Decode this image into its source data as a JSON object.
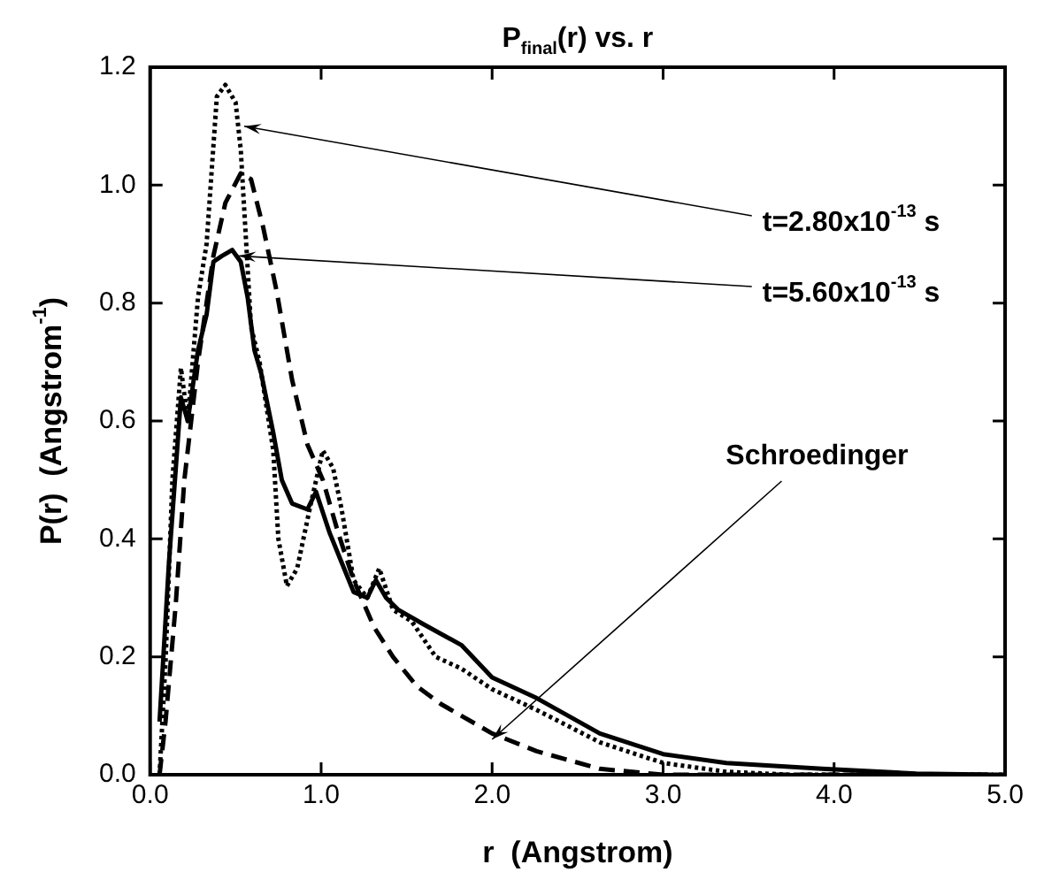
{
  "chart_data": {
    "type": "line",
    "title": "P$_{final}$(r) vs. r",
    "xlabel": "r  (Angstrom)",
    "ylabel": "P(r)  (Angstrom$^{-1}$)",
    "xlim": [
      0,
      5
    ],
    "ylim": [
      0,
      1.2
    ],
    "xticks": [
      {
        "value": 0,
        "label": "0.0"
      },
      {
        "value": 1,
        "label": "1.0"
      },
      {
        "value": 2,
        "label": "2.0"
      },
      {
        "value": 3,
        "label": "3.0"
      },
      {
        "value": 4,
        "label": "4.0"
      },
      {
        "value": 5,
        "label": "5.0"
      }
    ],
    "yticks": [
      {
        "value": 0,
        "label": "0.0"
      },
      {
        "value": 0.2,
        "label": "0.2"
      },
      {
        "value": 0.4,
        "label": "0.4"
      },
      {
        "value": 0.6,
        "label": "0.6"
      },
      {
        "value": 0.8,
        "label": "0.8"
      },
      {
        "value": 1,
        "label": "1.0"
      },
      {
        "value": 1.2,
        "label": "1.2"
      }
    ],
    "grid": false,
    "legend": false,
    "marker": "none",
    "series": [
      {
        "color": "#000000",
        "line_style": "solid",
        "x": [
          0.055,
          0.11,
          0.18,
          0.22,
          0.28,
          0.33,
          0.37,
          0.42,
          0.48,
          0.53,
          0.57,
          0.61,
          0.65,
          0.72,
          0.77,
          0.83,
          0.92,
          0.97,
          1.05,
          1.12,
          1.19,
          1.27,
          1.32,
          1.38,
          1.45,
          1.6,
          1.82,
          2.0,
          2.26,
          2.63,
          3.0,
          3.37,
          3.93,
          4.48,
          4.93
        ],
        "values": [
          0.09,
          0.36,
          0.64,
          0.6,
          0.72,
          0.78,
          0.87,
          0.88,
          0.89,
          0.87,
          0.81,
          0.72,
          0.68,
          0.58,
          0.5,
          0.46,
          0.45,
          0.48,
          0.41,
          0.36,
          0.31,
          0.3,
          0.33,
          0.3,
          0.28,
          0.255,
          0.22,
          0.165,
          0.13,
          0.07,
          0.035,
          0.02,
          0.01,
          0.002,
          0
        ]
      },
      {
        "color": "#000000",
        "line_style": "dotted",
        "x": [
          0.055,
          0.09,
          0.13,
          0.18,
          0.22,
          0.28,
          0.33,
          0.39,
          0.44,
          0.5,
          0.53,
          0.59,
          0.64,
          0.72,
          0.75,
          0.8,
          0.86,
          0.94,
          1.01,
          1.07,
          1.12,
          1.19,
          1.27,
          1.34,
          1.42,
          1.53,
          1.67,
          1.82,
          2.0,
          2.26,
          2.63,
          3.0,
          3.37,
          3.74,
          5.0
        ],
        "values": [
          0,
          0.19,
          0.5,
          0.69,
          0.6,
          0.81,
          0.9,
          1.15,
          1.17,
          1.14,
          1.06,
          0.76,
          0.7,
          0.55,
          0.4,
          0.32,
          0.35,
          0.46,
          0.55,
          0.52,
          0.45,
          0.33,
          0.3,
          0.35,
          0.28,
          0.26,
          0.2,
          0.18,
          0.145,
          0.11,
          0.055,
          0.02,
          0.005,
          0,
          0
        ]
      },
      {
        "color": "#000000",
        "line_style": "dashed",
        "x": [
          0.055,
          0.09,
          0.15,
          0.2,
          0.28,
          0.37,
          0.44,
          0.53,
          0.59,
          0.66,
          0.74,
          0.83,
          0.92,
          1.01,
          1.1,
          1.19,
          1.31,
          1.42,
          1.56,
          1.7,
          1.82,
          2.0,
          2.26,
          2.63,
          3.0,
          5.0
        ],
        "values": [
          0,
          0.09,
          0.29,
          0.5,
          0.7,
          0.88,
          0.97,
          1.02,
          1.01,
          0.93,
          0.82,
          0.67,
          0.56,
          0.5,
          0.41,
          0.33,
          0.25,
          0.2,
          0.15,
          0.12,
          0.1,
          0.07,
          0.04,
          0.01,
          0,
          0
        ]
      }
    ],
    "annotations": [
      {
        "text": "t=2.80x10$^{-13}$ s",
        "x": 0.55,
        "y": 1.1
      },
      {
        "text": "t=5.60x10$^{-13}$ s",
        "x": 0.52,
        "y": 0.88
      },
      {
        "text": "Schroedinger",
        "x": 2.0,
        "y": 0.06
      }
    ]
  }
}
